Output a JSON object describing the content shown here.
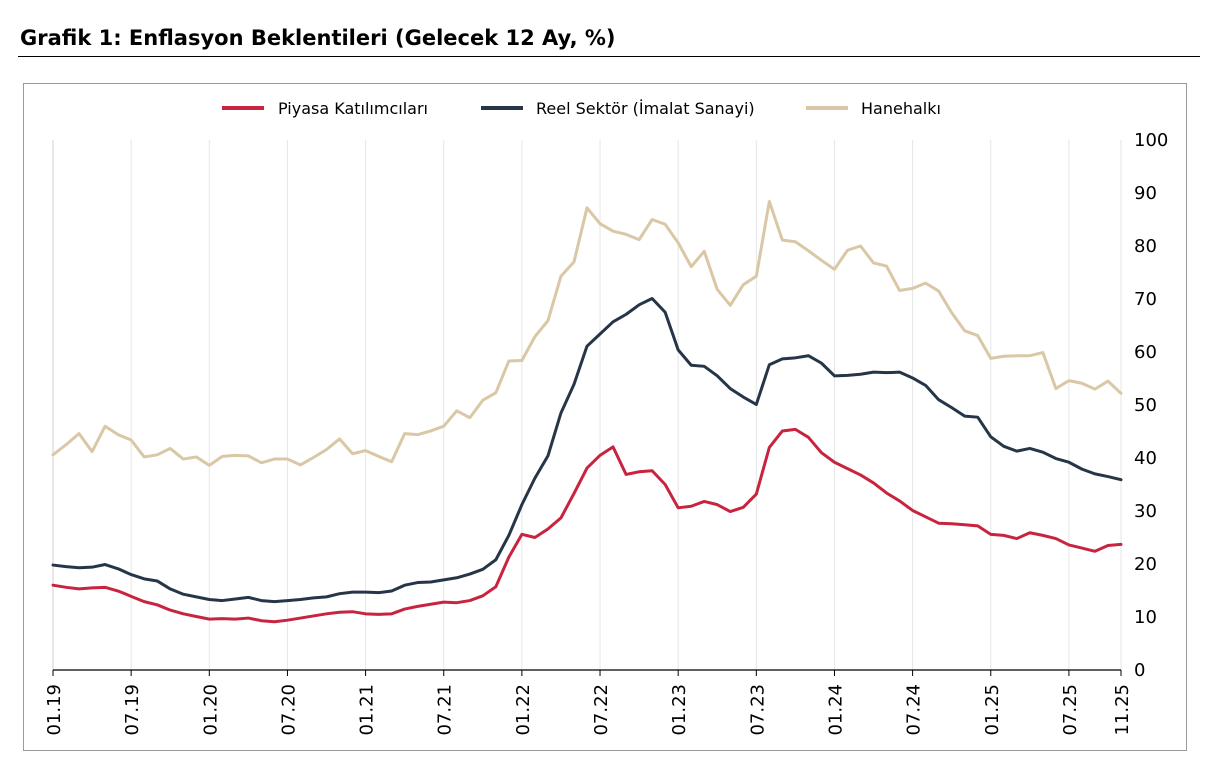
{
  "title": "Grafik 1: Enflasyon Beklentileri (Gelecek 12 Ay, %)",
  "chart_data": {
    "type": "line",
    "title": "Grafik 1: Enflasyon Beklentileri (Gelecek 12 Ay, %)",
    "xlabel": "",
    "ylabel": "",
    "ylim": [
      0,
      100
    ],
    "yticks": [
      "0",
      "10",
      "20",
      "30",
      "40",
      "50",
      "60",
      "70",
      "80",
      "90",
      "100"
    ],
    "xtick_labels": [
      "01.19",
      "07.19",
      "01.20",
      "07.20",
      "01.21",
      "07.21",
      "01.22",
      "07.22",
      "01.23",
      "07.23",
      "01.24",
      "07.24",
      "01.25",
      "07.25",
      "11.25"
    ],
    "x_start": "2019-01",
    "x_end": "2025-11",
    "x": [
      "2019-01",
      "2019-02",
      "2019-03",
      "2019-04",
      "2019-05",
      "2019-06",
      "2019-07",
      "2019-08",
      "2019-09",
      "2019-10",
      "2019-11",
      "2019-12",
      "2020-01",
      "2020-02",
      "2020-03",
      "2020-04",
      "2020-05",
      "2020-06",
      "2020-07",
      "2020-08",
      "2020-09",
      "2020-10",
      "2020-11",
      "2020-12",
      "2021-01",
      "2021-02",
      "2021-03",
      "2021-04",
      "2021-05",
      "2021-06",
      "2021-07",
      "2021-08",
      "2021-09",
      "2021-10",
      "2021-11",
      "2021-12",
      "2022-01",
      "2022-02",
      "2022-03",
      "2022-04",
      "2022-05",
      "2022-06",
      "2022-07",
      "2022-08",
      "2022-09",
      "2022-10",
      "2022-11",
      "2022-12",
      "2023-01",
      "2023-02",
      "2023-03",
      "2023-04",
      "2023-05",
      "2023-06",
      "2023-07",
      "2023-08",
      "2023-09",
      "2023-10",
      "2023-11",
      "2023-12",
      "2024-01",
      "2024-02",
      "2024-03",
      "2024-04",
      "2024-05",
      "2024-06",
      "2024-07",
      "2024-08",
      "2024-09",
      "2024-10",
      "2024-11",
      "2024-12",
      "2025-01",
      "2025-02",
      "2025-03",
      "2025-04",
      "2025-05",
      "2025-06",
      "2025-07",
      "2025-08",
      "2025-09",
      "2025-10",
      "2025-11"
    ],
    "grid": "vertical",
    "legend_position": "top-center",
    "series": [
      {
        "name": "Piyasa Katılımcıları",
        "color": "#c8243f",
        "values": [
          16.0,
          15.6,
          15.3,
          15.5,
          15.6,
          14.9,
          13.9,
          12.9,
          12.3,
          11.3,
          10.6,
          10.1,
          9.6,
          9.7,
          9.6,
          9.8,
          9.3,
          9.1,
          9.4,
          9.8,
          10.2,
          10.6,
          10.9,
          11.0,
          10.6,
          10.5,
          10.6,
          11.5,
          12.0,
          12.4,
          12.8,
          12.7,
          13.1,
          14.0,
          15.7,
          21.3,
          25.6,
          25.0,
          26.6,
          28.7,
          33.3,
          38.1,
          40.5,
          42.1,
          36.9,
          37.4,
          37.6,
          35.0,
          30.6,
          30.9,
          31.8,
          31.2,
          29.9,
          30.7,
          33.2,
          42.0,
          45.1,
          45.4,
          43.9,
          41.0,
          39.2,
          38.0,
          36.8,
          35.3,
          33.4,
          31.9,
          30.1,
          28.9,
          27.7,
          27.6,
          27.4,
          27.2,
          25.6,
          25.4,
          24.8,
          25.9,
          25.4,
          24.8,
          23.6,
          23.0,
          22.4,
          23.5,
          23.7
        ]
      },
      {
        "name": "Reel Sektör (İmalat Sanayi)",
        "color": "#263547",
        "values": [
          19.8,
          19.5,
          19.3,
          19.4,
          19.9,
          19.1,
          18.0,
          17.2,
          16.8,
          15.3,
          14.3,
          13.8,
          13.3,
          13.1,
          13.4,
          13.7,
          13.1,
          12.9,
          13.1,
          13.3,
          13.6,
          13.8,
          14.4,
          14.7,
          14.7,
          14.6,
          14.9,
          16.0,
          16.5,
          16.6,
          17.0,
          17.4,
          18.1,
          19.0,
          20.8,
          25.4,
          31.2,
          36.2,
          40.4,
          48.5,
          53.9,
          61.1,
          63.4,
          65.7,
          67.1,
          68.9,
          70.1,
          67.5,
          60.4,
          57.5,
          57.3,
          55.5,
          53.1,
          51.5,
          50.1,
          57.6,
          58.7,
          58.9,
          59.3,
          57.9,
          55.5,
          55.6,
          55.8,
          56.2,
          56.1,
          56.2,
          55.1,
          53.7,
          51.0,
          49.5,
          47.9,
          47.7,
          44.0,
          42.2,
          41.3,
          41.8,
          41.1,
          39.9,
          39.2,
          37.9,
          37.0,
          36.5,
          35.9
        ]
      },
      {
        "name": "Hanehalkı",
        "color": "#d9c7a6",
        "values": [
          40.6,
          42.5,
          44.6,
          41.2,
          46.0,
          44.4,
          43.4,
          40.2,
          40.6,
          41.8,
          39.8,
          40.2,
          38.6,
          40.3,
          40.5,
          40.4,
          39.1,
          39.8,
          39.8,
          38.7,
          40.1,
          41.6,
          43.6,
          40.8,
          41.4,
          40.3,
          39.3,
          44.6,
          44.4,
          45.1,
          46.0,
          48.9,
          47.6,
          50.9,
          52.3,
          58.3,
          58.4,
          62.9,
          65.9,
          74.3,
          77.0,
          87.2,
          84.2,
          82.8,
          82.2,
          81.2,
          85.0,
          84.1,
          80.6,
          76.1,
          79.0,
          71.8,
          68.8,
          72.7,
          74.3,
          88.4,
          81.1,
          80.8,
          79.1,
          77.3,
          75.6,
          79.2,
          80.0,
          76.8,
          76.2,
          71.6,
          72.0,
          73.0,
          71.5,
          67.4,
          64.0,
          63.1,
          58.8,
          59.2,
          59.3,
          59.3,
          59.9,
          53.1,
          54.6,
          54.1,
          53.0,
          54.5,
          52.2
        ]
      }
    ]
  }
}
